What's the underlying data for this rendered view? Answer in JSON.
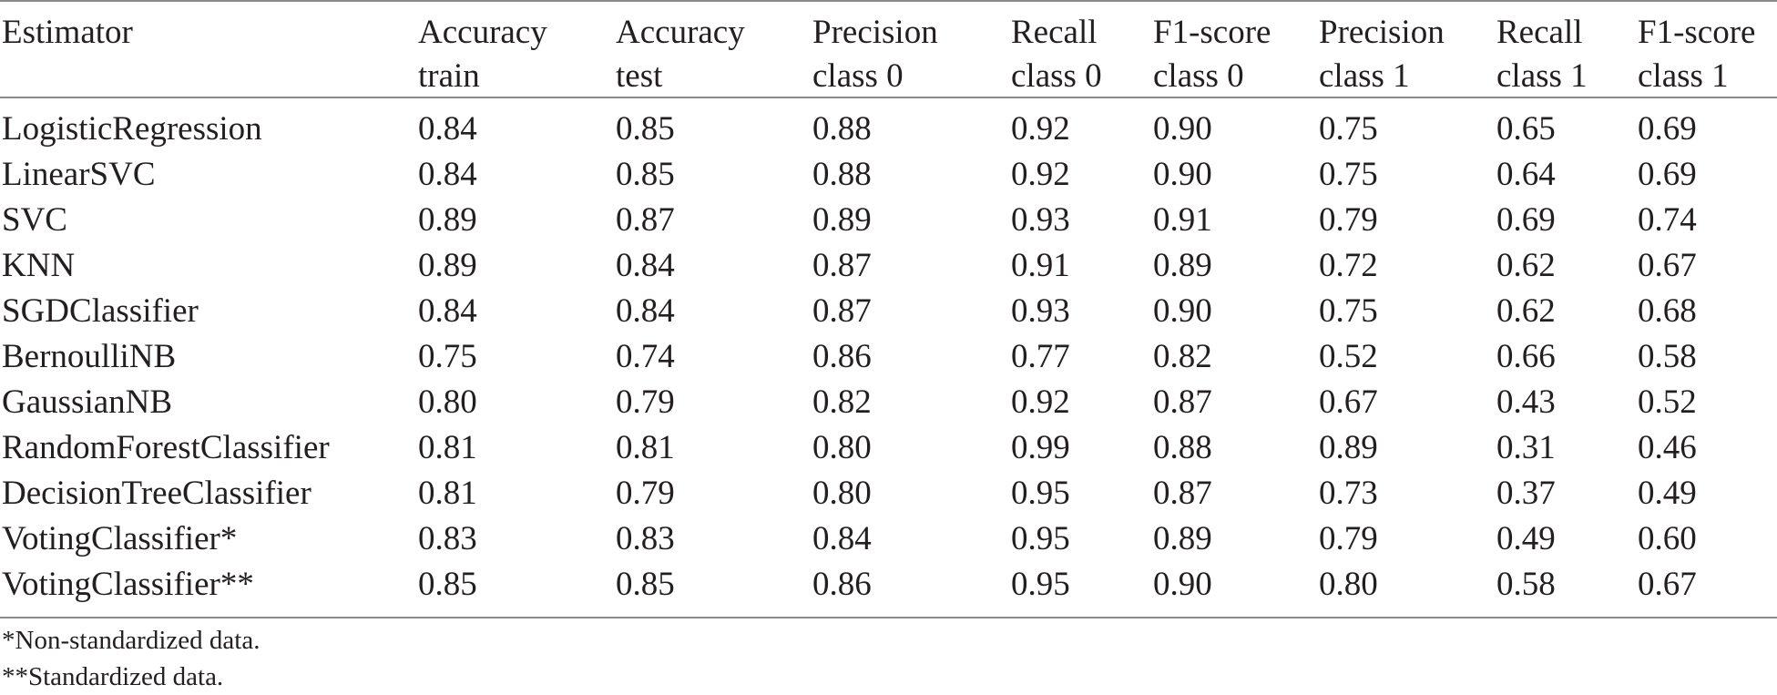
{
  "table": {
    "headers": [
      "Estimator",
      "Accuracy\ntrain",
      "Accuracy\ntest",
      "Precision\nclass 0",
      "Recall\nclass 0",
      "F1-score\nclass 0",
      "Precision\nclass 1",
      "Recall\nclass 1",
      "F1-score\nclass 1"
    ],
    "rows": [
      [
        "LogisticRegression",
        "0.84",
        "0.85",
        "0.88",
        "0.92",
        "0.90",
        "0.75",
        "0.65",
        "0.69"
      ],
      [
        "LinearSVC",
        "0.84",
        "0.85",
        "0.88",
        "0.92",
        "0.90",
        "0.75",
        "0.64",
        "0.69"
      ],
      [
        "SVC",
        "0.89",
        "0.87",
        "0.89",
        "0.93",
        "0.91",
        "0.79",
        "0.69",
        "0.74"
      ],
      [
        "KNN",
        "0.89",
        "0.84",
        "0.87",
        "0.91",
        "0.89",
        "0.72",
        "0.62",
        "0.67"
      ],
      [
        "SGDClassifier",
        "0.84",
        "0.84",
        "0.87",
        "0.93",
        "0.90",
        "0.75",
        "0.62",
        "0.68"
      ],
      [
        "BernoulliNB",
        "0.75",
        "0.74",
        "0.86",
        "0.77",
        "0.82",
        "0.52",
        "0.66",
        "0.58"
      ],
      [
        "GaussianNB",
        "0.80",
        "0.79",
        "0.82",
        "0.92",
        "0.87",
        "0.67",
        "0.43",
        "0.52"
      ],
      [
        "RandomForestClassifier",
        "0.81",
        "0.81",
        "0.80",
        "0.99",
        "0.88",
        "0.89",
        "0.31",
        "0.46"
      ],
      [
        "DecisionTreeClassifier",
        "0.81",
        "0.79",
        "0.80",
        "0.95",
        "0.87",
        "0.73",
        "0.37",
        "0.49"
      ],
      [
        "VotingClassifier*",
        "0.83",
        "0.83",
        "0.84",
        "0.95",
        "0.89",
        "0.79",
        "0.49",
        "0.60"
      ],
      [
        "VotingClassifier**",
        "0.85",
        "0.85",
        "0.86",
        "0.95",
        "0.90",
        "0.80",
        "0.58",
        "0.67"
      ]
    ]
  },
  "footnotes": [
    "*Non-standardized data.",
    "**Standardized data."
  ]
}
